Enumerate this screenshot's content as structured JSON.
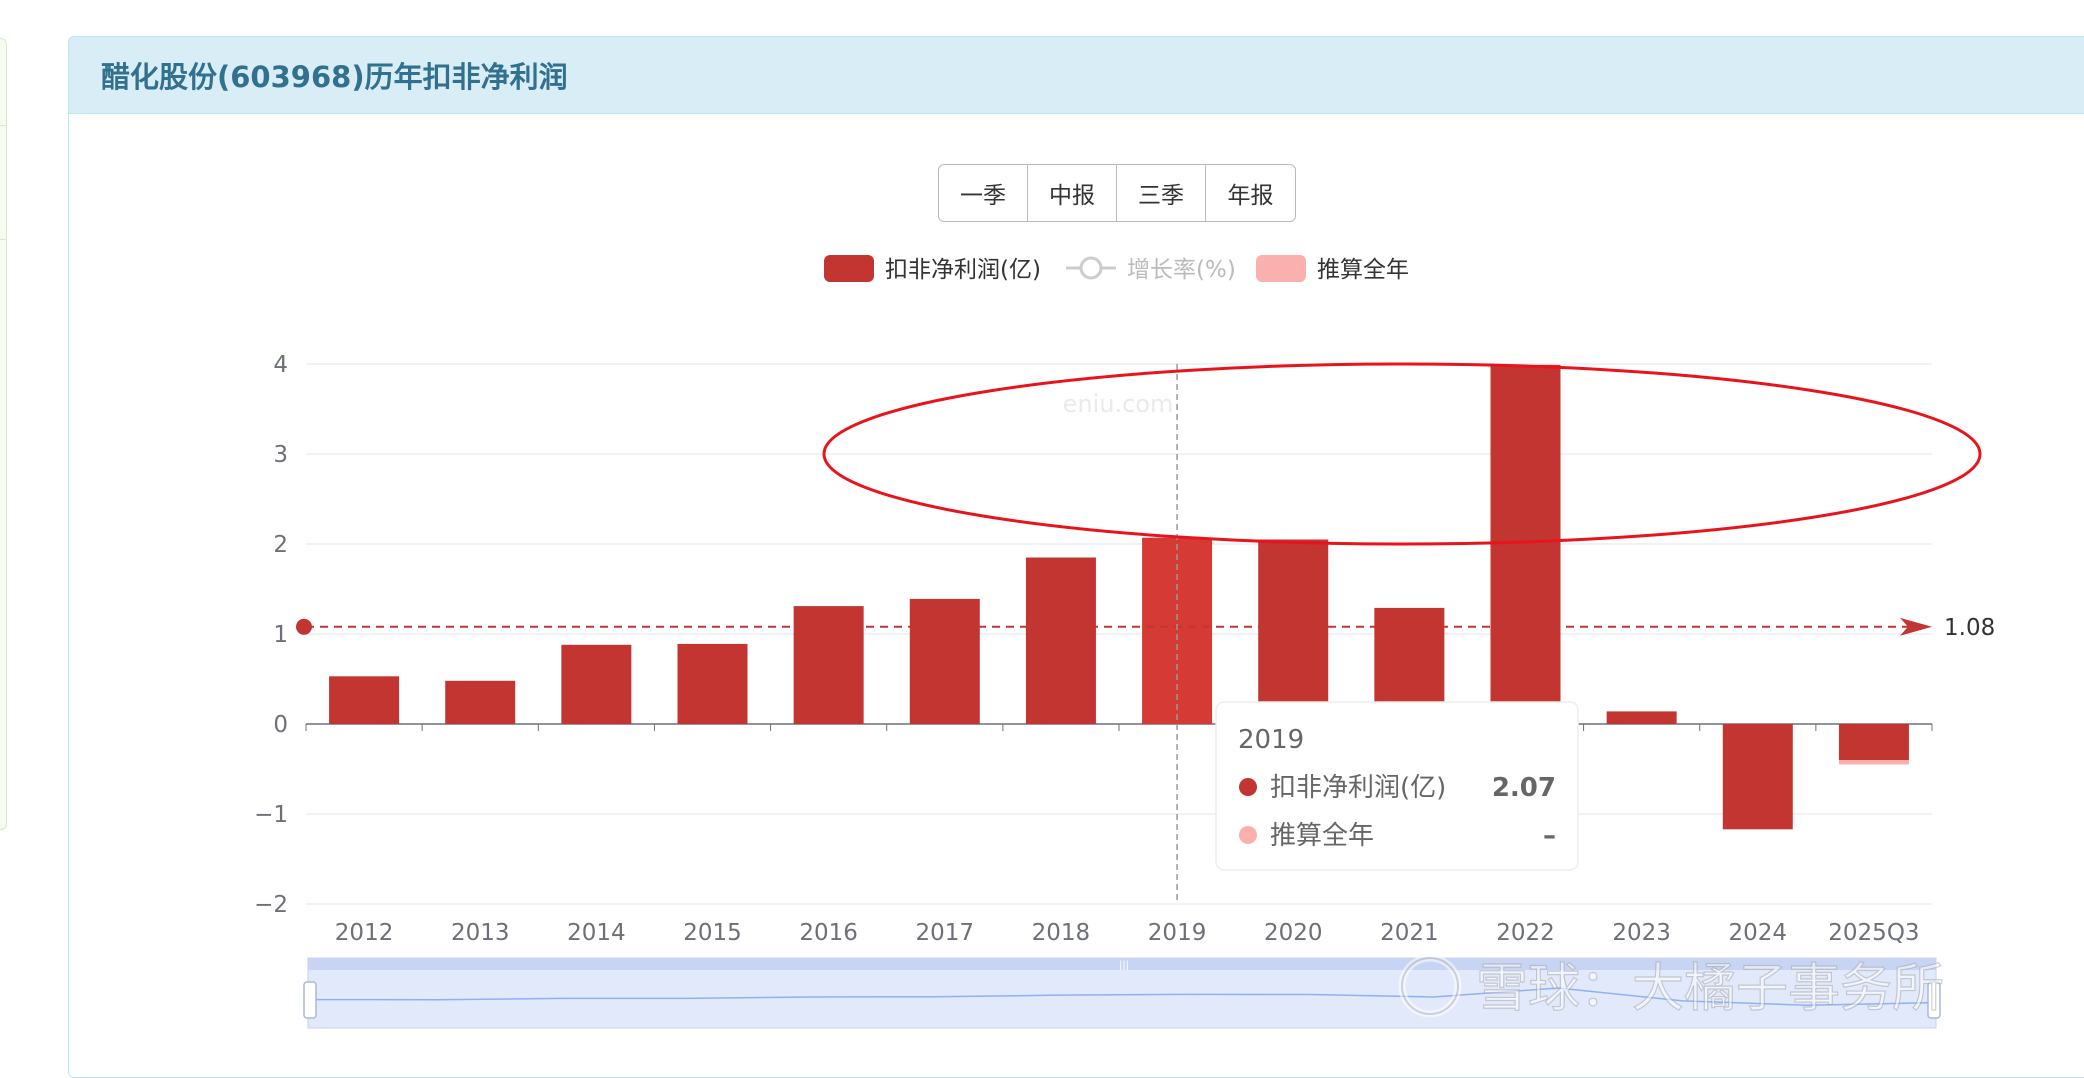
{
  "panel": {
    "title": "醋化股份(603968)历年扣非净利润"
  },
  "period_buttons": [
    "一季",
    "中报",
    "三季",
    "年报"
  ],
  "legend": [
    {
      "label": "扣非净利润(亿)",
      "color": "#c23531",
      "enabled": true,
      "kind": "bar"
    },
    {
      "label": "增长率(%)",
      "color": "#cccccc",
      "enabled": false,
      "kind": "line"
    },
    {
      "label": "推算全年",
      "color": "#fbb0b0",
      "enabled": true,
      "kind": "bar"
    }
  ],
  "watermark": "eniu.com",
  "xueqiu_watermark": "雪球：大橘子事务所",
  "tooltip": {
    "title": "2019",
    "rows": [
      {
        "label": "扣非净利润(亿)",
        "value": "2.07",
        "color": "#c23531"
      },
      {
        "label": "推算全年",
        "value": "–",
        "color": "#fbb0b0"
      }
    ]
  },
  "chart_data": {
    "type": "bar",
    "title": "醋化股份(603968)历年扣非净利润",
    "categories": [
      "2012",
      "2013",
      "2014",
      "2015",
      "2016",
      "2017",
      "2018",
      "2019",
      "2020",
      "2021",
      "2022",
      "2023",
      "2024",
      "2025Q3"
    ],
    "series": [
      {
        "name": "扣非净利润(亿)",
        "values": [
          0.53,
          0.48,
          0.88,
          0.89,
          1.31,
          1.39,
          1.85,
          2.07,
          2.05,
          1.29,
          3.99,
          0.14,
          -1.17,
          -0.4
        ]
      },
      {
        "name": "推算全年",
        "values": [
          null,
          null,
          null,
          null,
          null,
          null,
          null,
          null,
          null,
          null,
          null,
          null,
          null,
          -0.05
        ]
      }
    ],
    "yticks": [
      4,
      3,
      2,
      1,
      0,
      -1,
      -2
    ],
    "ytick_labels": [
      "4",
      "3",
      "2",
      "1",
      "0",
      "−1",
      "−2"
    ],
    "ylim": [
      -2,
      4
    ],
    "average_line": {
      "value": 1.08,
      "label": "1.08"
    },
    "highlight_category": "2019",
    "grid": true,
    "legend_position": "top-center"
  }
}
